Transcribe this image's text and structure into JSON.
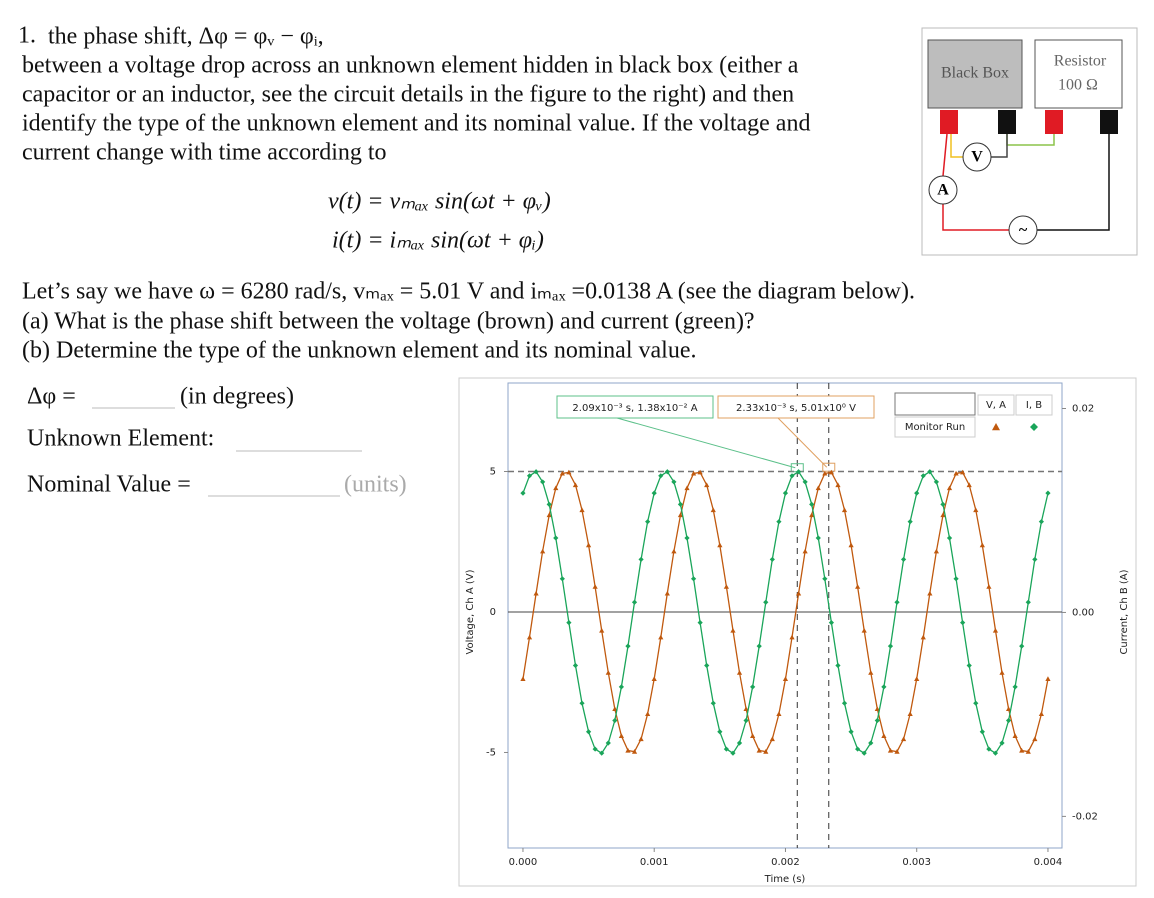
{
  "problem": {
    "number": "1.",
    "lines": [
      "the phase shift, Δφ = φᵥ − φᵢ,",
      "between a voltage drop across an unknown element hidden in black box (either a",
      "capacitor or an inductor, see the circuit details in the figure to the right) and then",
      "identify the type of the unknown element and its nominal value. If the voltage and",
      "current change with time according to"
    ],
    "equations": [
      "v(t) = vₘₐₓ sin(ωt + φᵥ)",
      "i(t) = iₘₐₓ sin(ωt + φᵢ)"
    ],
    "given": "Let’s say we have ω = 6280 rad/s, vₘₐₓ = 5.01 V and iₘₐₓ =0.0138 A (see the diagram below).",
    "questions": [
      "(a) What is the phase shift between the voltage (brown) and current (green)?",
      "(b) Determine the type of the unknown element and its nominal value."
    ]
  },
  "answers": [
    {
      "label": "Δφ =",
      "hint": "(in degrees)"
    },
    {
      "label": "Unknown Element:"
    },
    {
      "label": "Nominal Value =",
      "hint": "(units)"
    }
  ],
  "circuit": {
    "black_box": "Black Box",
    "resistor": "Resistor",
    "resistance": "100 Ω",
    "voltmeter": "V",
    "ammeter": "A",
    "source": "~"
  },
  "chart_data": {
    "type": "line",
    "x_label": "Time (s)",
    "y_label": "Voltage, Ch A (V)",
    "y2_label": "Current, Ch B (A)",
    "legend_title": "Monitor Run",
    "x": [
      0,
      5e-05,
      0.0001,
      0.00015,
      0.0002,
      0.00025,
      0.0003,
      0.00035,
      0.0004,
      0.00045,
      0.0005,
      0.00055,
      0.0006,
      0.00065,
      0.0007,
      0.00075,
      0.0008,
      0.00085,
      0.0009,
      0.00095,
      0.001,
      0.00105,
      0.0011,
      0.00115,
      0.0012,
      0.00125,
      0.0013,
      0.00135,
      0.0014,
      0.00145,
      0.0015,
      0.00155,
      0.0016,
      0.00165,
      0.0017,
      0.00175,
      0.0018,
      0.00185,
      0.0019,
      0.00195,
      0.002,
      0.00205,
      0.0021,
      0.00215,
      0.0022,
      0.00225,
      0.0023,
      0.00235,
      0.0024,
      0.00245,
      0.0025,
      0.00255,
      0.0026,
      0.00265,
      0.0027,
      0.00275,
      0.0028,
      0.00285,
      0.0029,
      0.00295,
      0.003,
      0.00305,
      0.0031,
      0.00315,
      0.0032,
      0.00325,
      0.0033,
      0.00335,
      0.0034,
      0.00345,
      0.0035,
      0.00355,
      0.0036,
      0.00365,
      0.0037,
      0.00375,
      0.0038,
      0.00385,
      0.0039,
      0.00395,
      0.004
    ],
    "series": [
      {
        "name": "V, A",
        "color": "#c0590e",
        "marker": "triangle",
        "values": [
          -2.38,
          -0.9,
          0.66,
          2.16,
          3.45,
          4.41,
          4.93,
          4.97,
          4.52,
          3.63,
          2.38,
          0.9,
          -0.66,
          -2.16,
          -3.45,
          -4.41,
          -4.93,
          -4.97,
          -4.52,
          -3.63,
          -2.38,
          -0.9,
          0.66,
          2.16,
          3.45,
          4.41,
          4.93,
          4.97,
          4.52,
          3.63,
          2.38,
          0.9,
          -0.66,
          -2.16,
          -3.45,
          -4.41,
          -4.93,
          -4.97,
          -4.52,
          -3.63,
          -2.38,
          -0.9,
          0.66,
          2.16,
          3.45,
          4.41,
          4.93,
          4.97,
          4.52,
          3.63,
          2.38,
          0.9,
          -0.66,
          -2.16,
          -3.45,
          -4.41,
          -4.93,
          -4.97,
          -4.52,
          -3.63,
          -2.38,
          -0.9,
          0.66,
          2.16,
          3.45,
          4.41,
          4.93,
          4.97,
          4.52,
          3.63,
          2.38,
          0.9,
          -0.66,
          -2.16,
          -3.45,
          -4.41,
          -4.93,
          -4.97,
          -4.52,
          -3.63,
          -2.38
        ]
      },
      {
        "name": "I, B",
        "color": "#1aa55a",
        "marker": "diamond",
        "axis": "y2",
        "values": [
          0.0117,
          0.0134,
          0.0138,
          0.0128,
          0.0106,
          0.0073,
          0.0033,
          -0.001,
          -0.0052,
          -0.0089,
          -0.0117,
          -0.0134,
          -0.0138,
          -0.0128,
          -0.0106,
          -0.0073,
          -0.0033,
          0.001,
          0.0052,
          0.0089,
          0.0117,
          0.0134,
          0.0138,
          0.0128,
          0.0106,
          0.0073,
          0.0033,
          -0.001,
          -0.0052,
          -0.0089,
          -0.0117,
          -0.0134,
          -0.0138,
          -0.0128,
          -0.0106,
          -0.0073,
          -0.0033,
          0.001,
          0.0052,
          0.0089,
          0.0117,
          0.0134,
          0.0138,
          0.0128,
          0.0106,
          0.0073,
          0.0033,
          -0.001,
          -0.0052,
          -0.0089,
          -0.0117,
          -0.0134,
          -0.0138,
          -0.0128,
          -0.0106,
          -0.0073,
          -0.0033,
          0.001,
          0.0052,
          0.0089,
          0.0117,
          0.0134,
          0.0138,
          0.0128,
          0.0106,
          0.0073,
          0.0033,
          -0.001,
          -0.0052,
          -0.0089,
          -0.0117,
          -0.0134,
          -0.0138,
          -0.0128,
          -0.0106,
          -0.0073,
          -0.0033,
          0.001,
          0.0052,
          0.0089,
          0.0117
        ]
      }
    ],
    "xlim": [
      -0.000114,
      0.004107
    ],
    "ylim": [
      -8.4,
      8.15
    ],
    "y2lim": [
      -0.0231,
      0.0225
    ],
    "xticks": [
      {
        "value": 0,
        "label": "0.000"
      },
      0.001,
      0.002,
      0.003,
      0.004
    ],
    "yticks": [
      5,
      0,
      -5
    ],
    "y2ticks": [
      0.02,
      {
        "value": 0,
        "label": "0.00"
      },
      -0.02
    ],
    "cursors": [
      {
        "x": 0.00209,
        "y": 0.0138,
        "axis": "y2",
        "label": "2.09x10⁻³ s, 1.38x10⁻² A",
        "color": "#5cc08a"
      },
      {
        "x": 0.00233,
        "y": 5.01,
        "label": "2.33x10⁻³ s, 5.01x10⁰ V",
        "color": "#e0a060"
      }
    ]
  }
}
